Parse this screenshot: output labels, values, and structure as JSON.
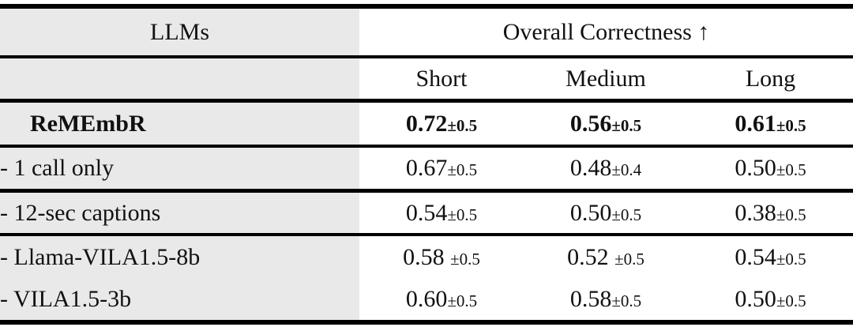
{
  "table": {
    "header": {
      "col1": "LLMs",
      "group": "Overall Correctness ↑",
      "sub": [
        "Short",
        "Medium",
        "Long"
      ]
    },
    "colors": {
      "label_column_bg": "#e9e9e9",
      "rule": "#000000",
      "text": "#111111"
    },
    "rows": [
      {
        "label": "ReMEmbR",
        "cells": [
          {
            "value": "0.72",
            "pm": "±0.5"
          },
          {
            "value": "0.56",
            "pm": "±0.5"
          },
          {
            "value": "0.61",
            "pm": "±0.5"
          }
        ]
      },
      {
        "label": "- 1 call only",
        "cells": [
          {
            "value": "0.67",
            "pm": "±0.5"
          },
          {
            "value": "0.48",
            "pm": "±0.4"
          },
          {
            "value": "0.50",
            "pm": "±0.5"
          }
        ]
      },
      {
        "label": "- 12-sec captions",
        "cells": [
          {
            "value": "0.54",
            "pm": "±0.5"
          },
          {
            "value": "0.50",
            "pm": "±0.5"
          },
          {
            "value": "0.38",
            "pm": "±0.5"
          }
        ]
      },
      {
        "label": "- Llama-VILA1.5-8b",
        "cells": [
          {
            "value": "0.58 ",
            "pm": "±0.5"
          },
          {
            "value": "0.52 ",
            "pm": "±0.5"
          },
          {
            "value": "0.54",
            "pm": "±0.5"
          }
        ]
      },
      {
        "label": "- VILA1.5-3b",
        "cells": [
          {
            "value": "0.60",
            "pm": "±0.5"
          },
          {
            "value": "0.58",
            "pm": "±0.5"
          },
          {
            "value": "0.50",
            "pm": "±0.5"
          }
        ]
      }
    ]
  }
}
